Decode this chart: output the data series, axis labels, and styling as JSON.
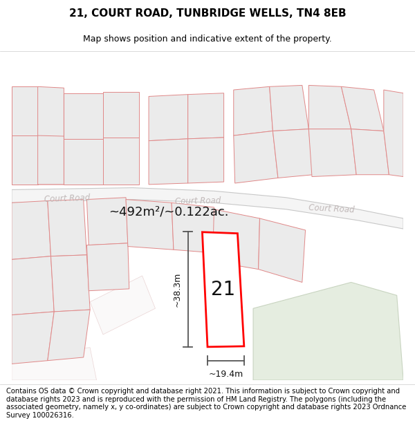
{
  "title": "21, COURT ROAD, TUNBRIDGE WELLS, TN4 8EB",
  "subtitle": "Map shows position and indicative extent of the property.",
  "footer": "Contains OS data © Crown copyright and database right 2021. This information is subject to Crown copyright and database rights 2023 and is reproduced with the permission of HM Land Registry. The polygons (including the associated geometry, namely x, y co-ordinates) are subject to Crown copyright and database rights 2023 Ordnance Survey 100026316.",
  "area_label": "~492m²/~0.122ac.",
  "width_label": "~19.4m",
  "height_label": "~38.3m",
  "house_number": "21",
  "road_label_left": "Court Road",
  "road_label_center": "Court Road",
  "road_label_right": "Court Road",
  "bg_color": "#ffffff",
  "map_bg": "#ffffff",
  "building_fill": "#ebebeb",
  "building_edge": "#e08888",
  "road_fill": "#ffffff",
  "road_edge": "#c8c8c8",
  "highlight_fill": "#ffffff",
  "highlight_edge": "#ff0000",
  "green_fill": "#e8ede0",
  "dim_color": "#444444",
  "road_text_color": "#c0b8b8",
  "title_fontsize": 11,
  "subtitle_fontsize": 9,
  "footer_fontsize": 7.2
}
